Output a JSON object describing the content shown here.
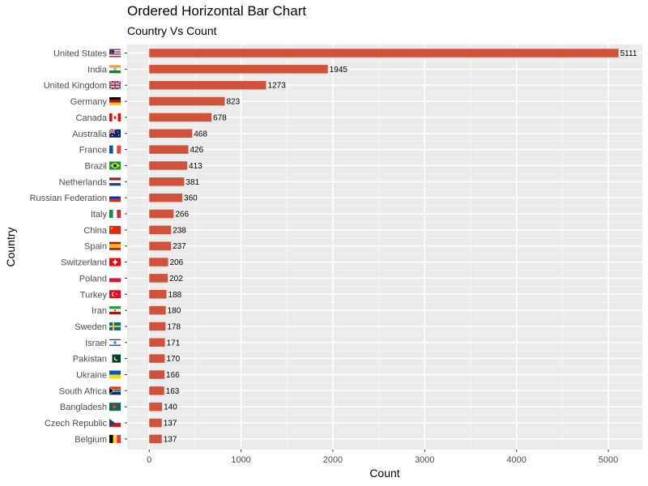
{
  "chart_data": {
    "type": "bar",
    "orientation": "horizontal",
    "title": "Ordered Horizontal Bar Chart",
    "subtitle": "Country Vs Count",
    "xlabel": "Count",
    "ylabel": "Country",
    "xlim": [
      -240,
      5370
    ],
    "xticks": [
      0,
      1000,
      2000,
      3000,
      4000,
      5000
    ],
    "grid": true,
    "bar_color": "#d1523b",
    "panel_bg": "#ebebeb",
    "grid_major_color": "#ffffff",
    "grid_minor_color": "#f5f5f5",
    "categories": [
      "United States",
      "India",
      "United Kingdom",
      "Germany",
      "Canada",
      "Australia",
      "France",
      "Brazil",
      "Netherlands",
      "Russian Federation",
      "Italy",
      "China",
      "Spain",
      "Switzerland",
      "Poland",
      "Turkey",
      "Iran",
      "Sweden",
      "Israel",
      "Pakistan",
      "Ukraine",
      "South Africa",
      "Bangladesh",
      "Czech Republic",
      "Belgium"
    ],
    "values": [
      5111,
      1945,
      1273,
      823,
      678,
      468,
      426,
      413,
      381,
      360,
      266,
      238,
      237,
      206,
      202,
      188,
      180,
      178,
      171,
      170,
      166,
      163,
      140,
      137,
      137
    ],
    "flag_icons": [
      "flag-us-icon",
      "flag-in-icon",
      "flag-gb-icon",
      "flag-de-icon",
      "flag-ca-icon",
      "flag-au-icon",
      "flag-fr-icon",
      "flag-br-icon",
      "flag-nl-icon",
      "flag-ru-icon",
      "flag-it-icon",
      "flag-cn-icon",
      "flag-es-icon",
      "flag-ch-icon",
      "flag-pl-icon",
      "flag-tr-icon",
      "flag-ir-icon",
      "flag-se-icon",
      "flag-il-icon",
      "flag-pk-icon",
      "flag-ua-icon",
      "flag-za-icon",
      "flag-bd-icon",
      "flag-cz-icon",
      "flag-be-icon"
    ]
  }
}
